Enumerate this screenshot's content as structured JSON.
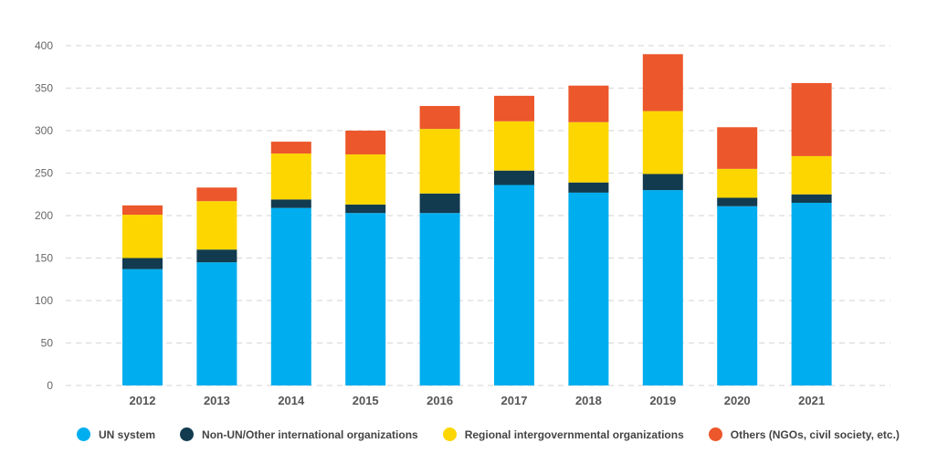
{
  "chart_data": {
    "type": "bar",
    "stacked": true,
    "categories": [
      "2012",
      "2013",
      "2014",
      "2015",
      "2016",
      "2017",
      "2018",
      "2019",
      "2020",
      "2021"
    ],
    "series": [
      {
        "name": "UN system",
        "color": "#00aeef",
        "values": [
          137,
          145,
          209,
          203,
          203,
          236,
          227,
          230,
          211,
          215
        ]
      },
      {
        "name": "Non-UN/Other international organizations",
        "color": "#123b4f",
        "values": [
          13,
          15,
          10,
          10,
          23,
          17,
          12,
          19,
          10,
          10
        ]
      },
      {
        "name": "Regional intergovernmental organizations",
        "color": "#fdd600",
        "values": [
          51,
          57,
          54,
          59,
          76,
          58,
          71,
          74,
          34,
          45
        ]
      },
      {
        "name": "Others (NGOs, civil society, etc.)",
        "color": "#ec572b",
        "values": [
          11,
          16,
          14,
          28,
          27,
          30,
          43,
          67,
          49,
          86
        ]
      }
    ],
    "yticks": [
      0,
      50,
      100,
      150,
      200,
      250,
      300,
      350,
      400
    ],
    "ylim": [
      0,
      400
    ],
    "grid": true,
    "legend_position": "bottom"
  }
}
